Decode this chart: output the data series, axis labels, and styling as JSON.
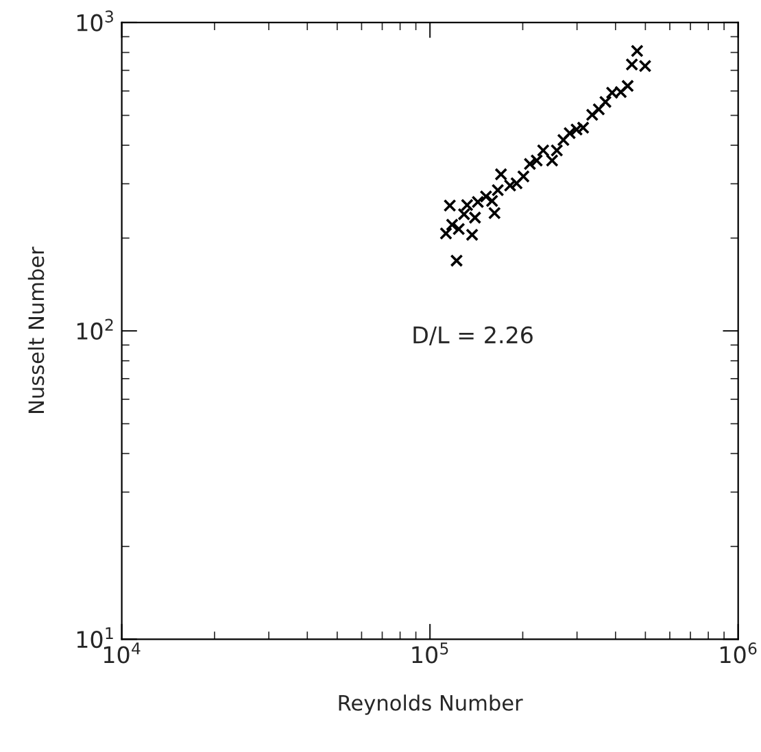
{
  "chart_data": {
    "type": "scatter",
    "xlabel": "Reynolds Number",
    "ylabel": "Nusselt Number",
    "annotations": [
      "D/L = 2.26"
    ],
    "log": "xy",
    "grid": false,
    "marker": "cross",
    "xlim": [
      10000,
      1000000
    ],
    "ylim": [
      10,
      1000
    ],
    "xticks": [
      {
        "value": 10000,
        "label": "10$^{4}$"
      },
      {
        "value": 100000,
        "label": "10$^{5}$"
      },
      {
        "value": 1000000,
        "label": "10$^{6}$"
      }
    ],
    "yticks": [
      {
        "value": 10,
        "label": "10$^{1}$"
      },
      {
        "value": 100,
        "label": "10$^{2}$"
      },
      {
        "value": 1000,
        "label": "10$^{3}$"
      }
    ],
    "series": [
      {
        "color": "#000000",
        "x": [
          112700,
          122000,
          116000,
          118000,
          124000,
          129000,
          132000,
          137000,
          140000,
          143000,
          152000,
          159000,
          162000,
          166000,
          170000,
          182000,
          191000,
          201000,
          211000,
          222000,
          233000,
          249000,
          258000,
          271000,
          284000,
          299000,
          314000,
          336000,
          353000,
          371000,
          390000,
          416000,
          438000,
          452000,
          470000,
          499000
        ],
        "values": [
          207,
          169,
          255,
          221,
          214,
          239,
          256,
          205,
          233,
          262,
          273,
          264,
          241,
          286,
          322,
          296,
          301,
          317,
          348,
          357,
          385,
          357,
          385,
          416,
          438,
          450,
          456,
          502,
          523,
          553,
          592,
          595,
          623,
          731,
          809,
          723
        ]
      }
    ]
  }
}
